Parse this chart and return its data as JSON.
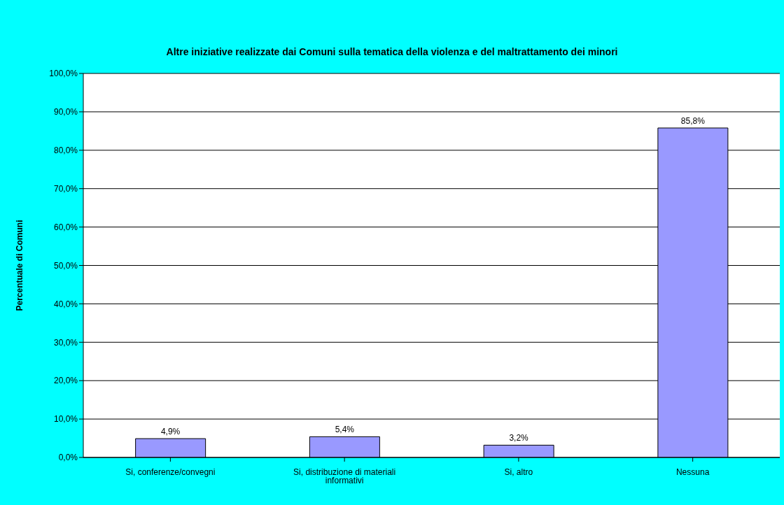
{
  "chart_data": {
    "type": "bar",
    "title": "Altre iniziative realizzate dai Comuni sulla tematica della violenza e del maltrattamento dei minori",
    "ylabel": "Percentuale di Comuni",
    "categories": [
      "Si, conferenze/convegni",
      "Si, distribuzione di materiali informativi",
      "Si, altro",
      "Nessuna"
    ],
    "values": [
      4.9,
      5.4,
      3.2,
      85.8
    ],
    "color": "#9999ff",
    "value_labels": [
      "4,9%",
      "5,4%",
      "3,2%",
      "85,8%"
    ],
    "ylim": [
      0,
      100
    ],
    "yticks": [
      {
        "value": 0,
        "label": "0,0%"
      },
      {
        "value": 10,
        "label": "10,0%"
      },
      {
        "value": 20,
        "label": "20,0%"
      },
      {
        "value": 30,
        "label": "30,0%"
      },
      {
        "value": 40,
        "label": "40,0%"
      },
      {
        "value": 50,
        "label": "50,0%"
      },
      {
        "value": 60,
        "label": "60,0%"
      },
      {
        "value": 70,
        "label": "70,0%"
      },
      {
        "value": 80,
        "label": "80,0%"
      },
      {
        "value": 90,
        "label": "90,0%"
      },
      {
        "value": 100,
        "label": "100,0%"
      }
    ],
    "grid": "y"
  }
}
